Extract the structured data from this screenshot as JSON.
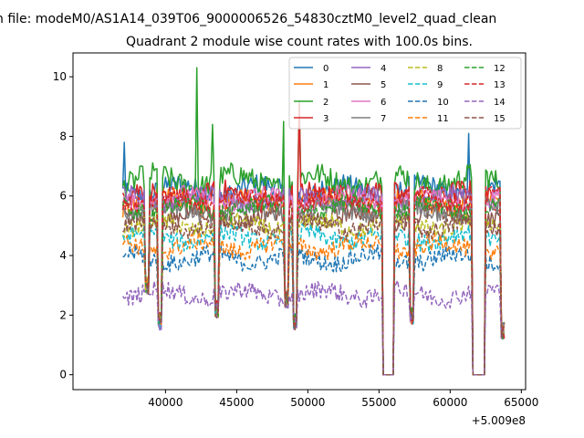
{
  "chart_data": {
    "type": "line",
    "suptitle": "n file: modeM0/AS1A14_039T06_9000006526_54830cztM0_level2_quad_clean",
    "title": "Quadrant 2 module wise count rates with 100.0s bins.",
    "xlabel": "",
    "ylabel": "",
    "x_offset_label": "+5.009e8",
    "x_range": [
      37000,
      63800
    ],
    "xlim": [
      33500,
      65300
    ],
    "ylim": [
      -0.5,
      10.8
    ],
    "x_ticks": [
      40000,
      45000,
      50000,
      55000,
      60000,
      65000
    ],
    "x_tick_labels": [
      "40000",
      "45000",
      "50000",
      "55000",
      "60000",
      "65000"
    ],
    "y_ticks": [
      0,
      2,
      4,
      6,
      8,
      10
    ],
    "y_tick_labels": [
      "0",
      "2",
      "4",
      "6",
      "8",
      "10"
    ],
    "grid": false,
    "legend_position": "upper-right",
    "legend_columns": 4,
    "gaps": [
      {
        "start": 38600,
        "end": 38800,
        "bottom": 3.0
      },
      {
        "start": 39500,
        "end": 39700,
        "bottom": 1.8
      },
      {
        "start": 43500,
        "end": 43700,
        "bottom": 2.2
      },
      {
        "start": 48400,
        "end": 48600,
        "bottom": 2.5
      },
      {
        "start": 49000,
        "end": 49200,
        "bottom": 1.8
      },
      {
        "start": 55300,
        "end": 56000,
        "bottom": 0.0
      },
      {
        "start": 57200,
        "end": 57400,
        "bottom": 2.0
      },
      {
        "start": 61600,
        "end": 62400,
        "bottom": 0.0
      },
      {
        "start": 63600,
        "end": 63800,
        "bottom": 1.5
      }
    ],
    "spikes": [
      {
        "series": 2,
        "x": 42200,
        "value": 10.3
      },
      {
        "series": 2,
        "x": 49400,
        "value": 9.2
      },
      {
        "series": 3,
        "x": 49400,
        "value": 9.1
      },
      {
        "series": 0,
        "x": 37100,
        "value": 7.8
      },
      {
        "series": 0,
        "x": 61300,
        "value": 8.1
      },
      {
        "series": 2,
        "x": 48300,
        "value": 8.5
      },
      {
        "series": 2,
        "x": 43300,
        "value": 8.4
      }
    ],
    "series": [
      {
        "name": "0",
        "color": "#1f77b4",
        "dash": "solid",
        "level": 6.2,
        "noise": 0.35
      },
      {
        "name": "1",
        "color": "#ff7f0e",
        "dash": "solid",
        "level": 5.8,
        "noise": 0.35
      },
      {
        "name": "2",
        "color": "#2ca02c",
        "dash": "solid",
        "level": 6.5,
        "noise": 0.4
      },
      {
        "name": "3",
        "color": "#d62728",
        "dash": "solid",
        "level": 6.0,
        "noise": 0.35
      },
      {
        "name": "4",
        "color": "#9467bd",
        "dash": "solid",
        "level": 5.9,
        "noise": 0.3
      },
      {
        "name": "5",
        "color": "#8c564b",
        "dash": "solid",
        "level": 5.3,
        "noise": 0.3
      },
      {
        "name": "6",
        "color": "#e377c2",
        "dash": "solid",
        "level": 5.9,
        "noise": 0.3
      },
      {
        "name": "7",
        "color": "#7f7f7f",
        "dash": "solid",
        "level": 5.5,
        "noise": 0.3
      },
      {
        "name": "8",
        "color": "#bcbd22",
        "dash": "dashed",
        "level": 5.0,
        "noise": 0.3
      },
      {
        "name": "9",
        "color": "#17becf",
        "dash": "dashed",
        "level": 4.6,
        "noise": 0.3
      },
      {
        "name": "10",
        "color": "#1f77b4",
        "dash": "dashed",
        "level": 3.9,
        "noise": 0.3
      },
      {
        "name": "11",
        "color": "#ff7f0e",
        "dash": "dashed",
        "level": 4.3,
        "noise": 0.3
      },
      {
        "name": "12",
        "color": "#2ca02c",
        "dash": "dashed",
        "level": 5.6,
        "noise": 0.3
      },
      {
        "name": "13",
        "color": "#d62728",
        "dash": "dashed",
        "level": 5.9,
        "noise": 0.3
      },
      {
        "name": "14",
        "color": "#9467bd",
        "dash": "dashed",
        "level": 2.7,
        "noise": 0.3
      },
      {
        "name": "15",
        "color": "#8c564b",
        "dash": "dashed",
        "level": 5.0,
        "noise": 0.3
      }
    ]
  }
}
